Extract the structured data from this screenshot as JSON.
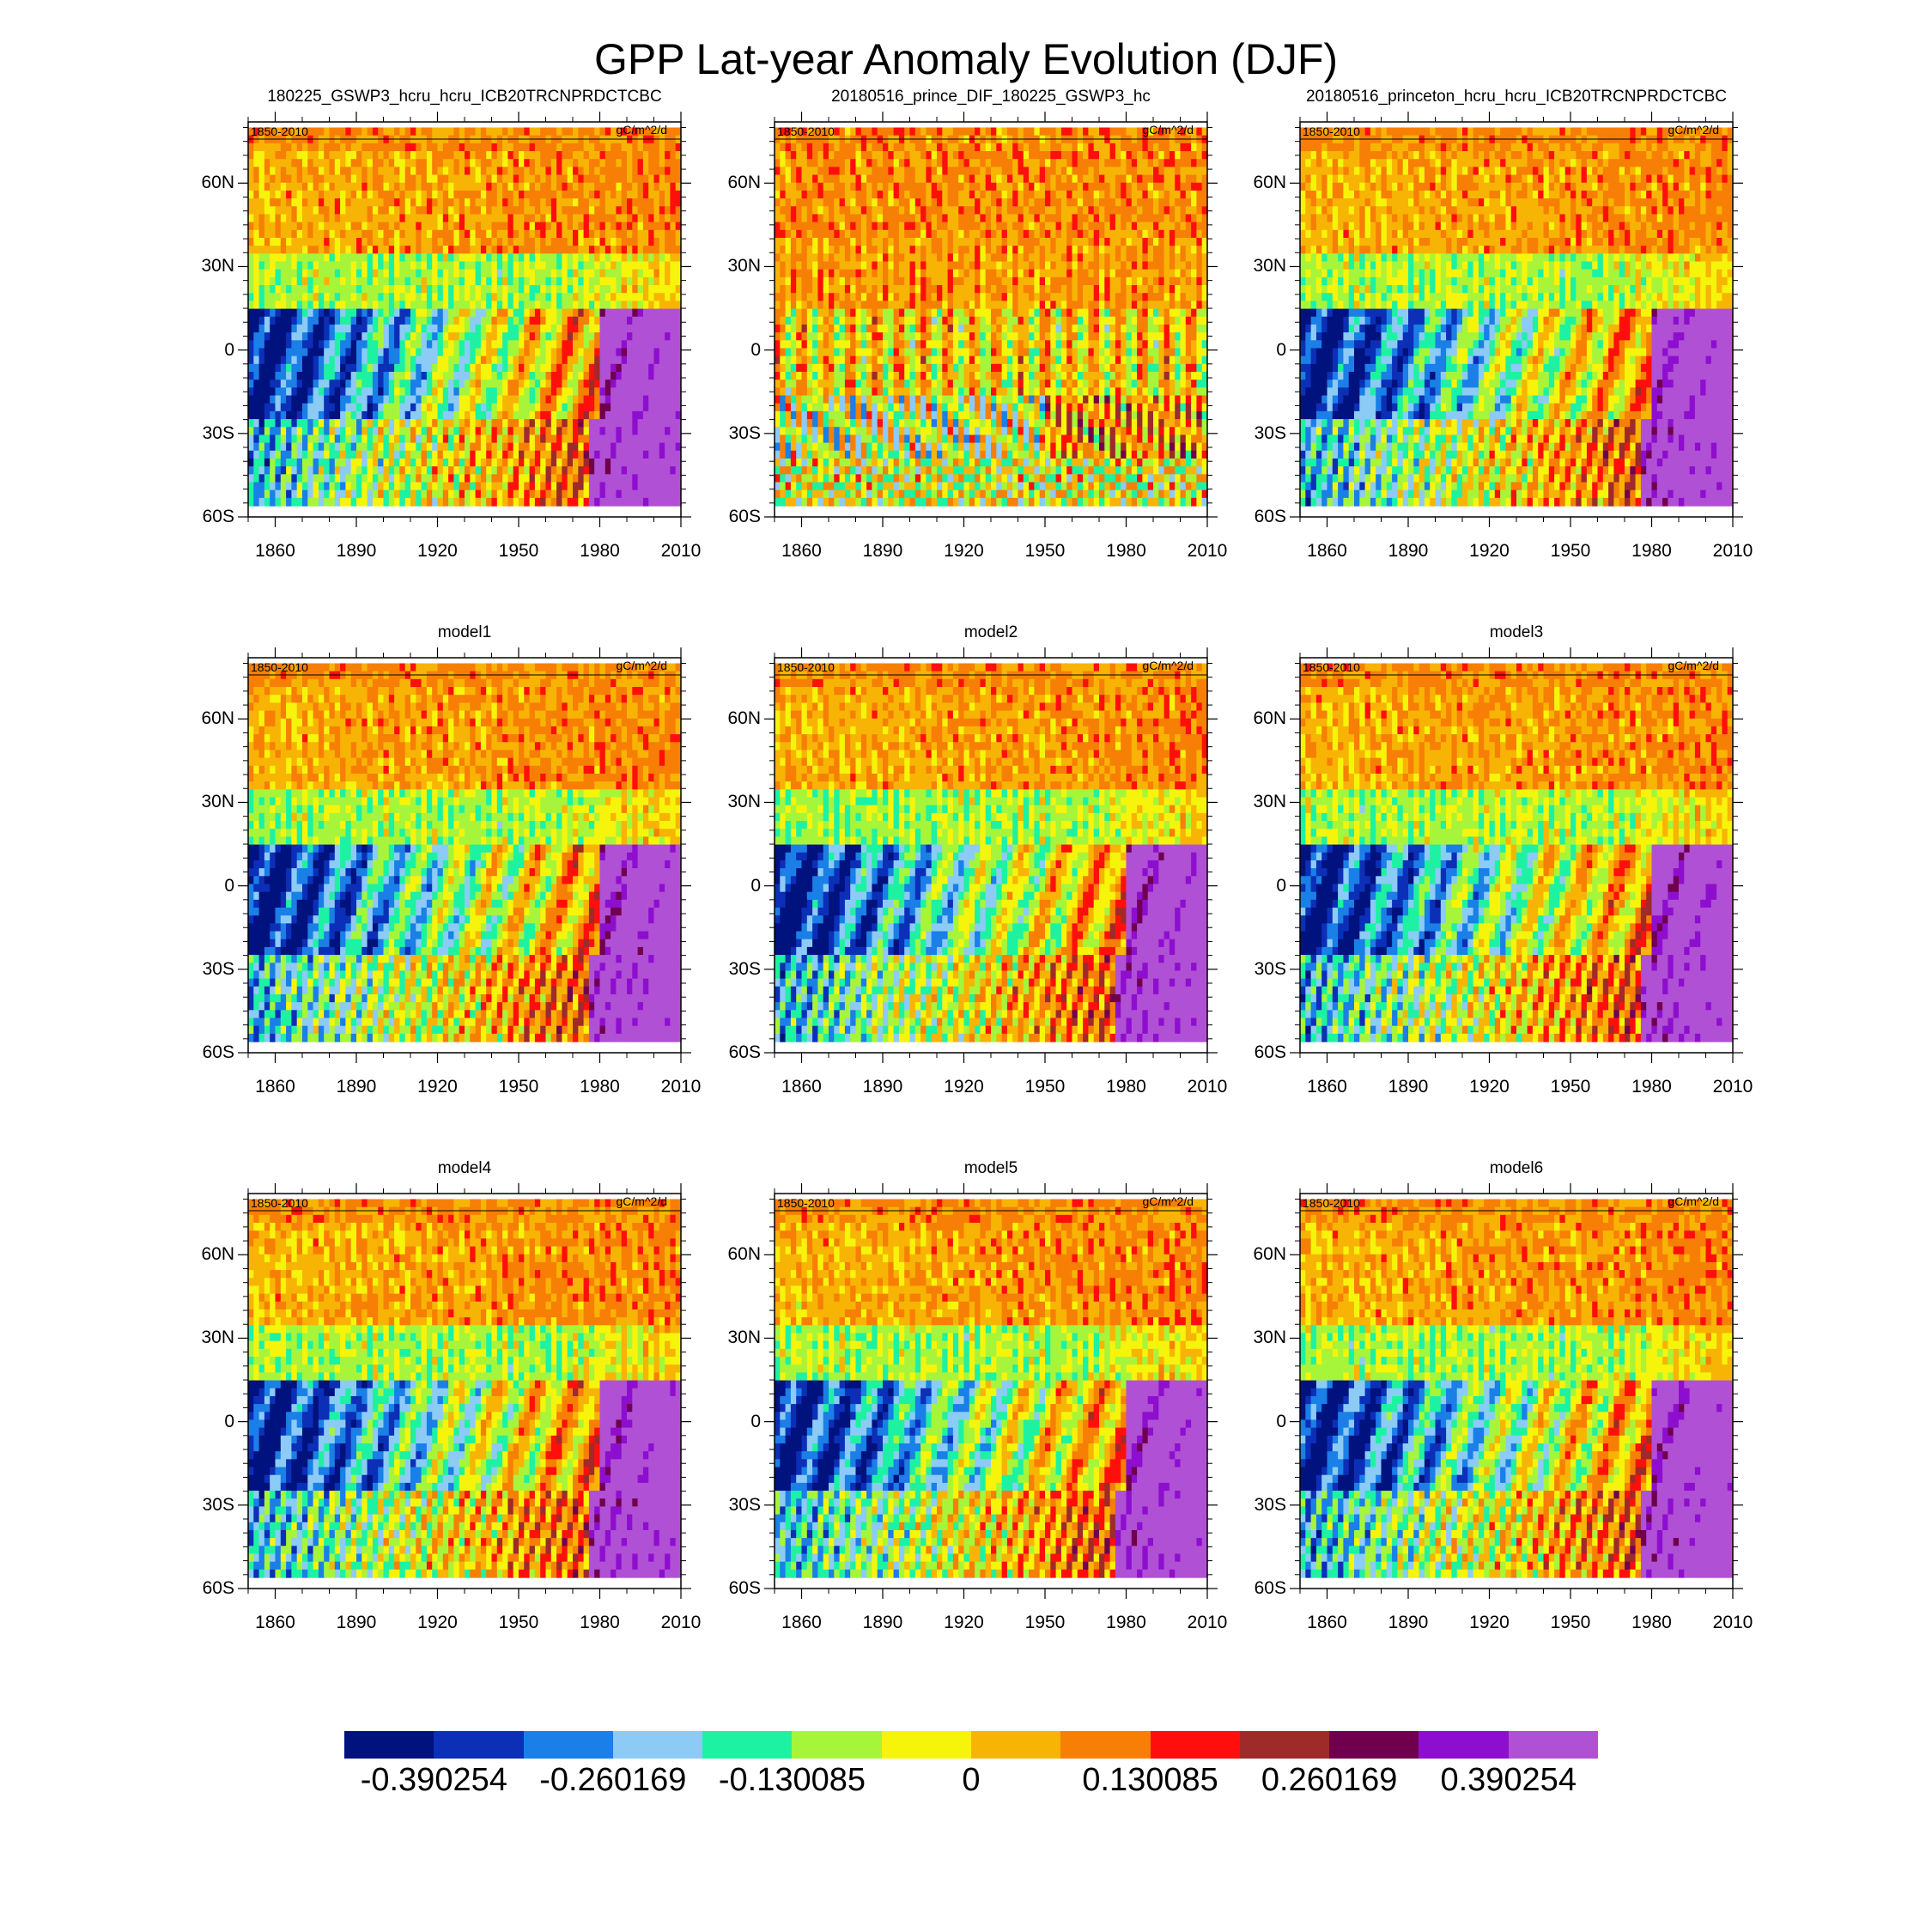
{
  "chart_data": {
    "type": "heatmap",
    "title": "GPP Lat-year Anomaly Evolution (DJF)",
    "x_ticks": [
      "1860",
      "1890",
      "1920",
      "1950",
      "1980",
      "2010"
    ],
    "x_tick_values": [
      1860,
      1890,
      1920,
      1950,
      1980,
      2010
    ],
    "xlim": [
      1850,
      2010
    ],
    "y_ticks": [
      "60N",
      "30N",
      "0",
      "30S",
      "60S"
    ],
    "y_tick_values": [
      60,
      30,
      0,
      -30,
      -60
    ],
    "ylim": [
      -60,
      82
    ],
    "levels": [
      -0.390254,
      -0.325211,
      -0.260169,
      -0.195127,
      -0.130085,
      -0.065042,
      0,
      0.065042,
      0.130085,
      0.195127,
      0.260169,
      0.325211,
      0.390254
    ],
    "colorbar_labels": [
      "-0.390254",
      "-0.260169",
      "-0.130085",
      "0",
      "0.130085",
      "0.260169",
      "0.390254"
    ],
    "colors": [
      "#00127e",
      "#0c2fb8",
      "#1a7fe6",
      "#8ccbf6",
      "#1df2a2",
      "#a6f53a",
      "#f6f40b",
      "#f8b404",
      "#f77f05",
      "#ff0f0c",
      "#9e2a2a",
      "#70004e",
      "#8e0ecf",
      "#b050d4"
    ],
    "panels": [
      {
        "title": "180225_GSWP3_hcru_hcru_ICB20TRCNPRDCTCBC",
        "period": "1850-2010",
        "unit": "gC/m^2/d",
        "variant": "base"
      },
      {
        "title": "20180516_prince_DIF_180225_GSWP3_hc",
        "period": "1850-2010",
        "unit": "gC/m^2/d",
        "variant": "diff"
      },
      {
        "title": "20180516_princeton_hcru_hcru_ICB20TRCNPRDCTCBC",
        "period": "1850-2010",
        "unit": "gC/m^2/d",
        "variant": "base"
      },
      {
        "title": "model1",
        "period": "1850-2010",
        "unit": "gC/m^2/d",
        "variant": "base"
      },
      {
        "title": "model2",
        "period": "1850-2010",
        "unit": "gC/m^2/d",
        "variant": "base"
      },
      {
        "title": "model3",
        "period": "1850-2010",
        "unit": "gC/m^2/d",
        "variant": "base"
      },
      {
        "title": "model4",
        "period": "1850-2010",
        "unit": "gC/m^2/d",
        "variant": "base"
      },
      {
        "title": "model5",
        "period": "1850-2010",
        "unit": "gC/m^2/d",
        "variant": "base"
      },
      {
        "title": "model6",
        "period": "1850-2010",
        "unit": "gC/m^2/d",
        "variant": "base"
      }
    ]
  }
}
